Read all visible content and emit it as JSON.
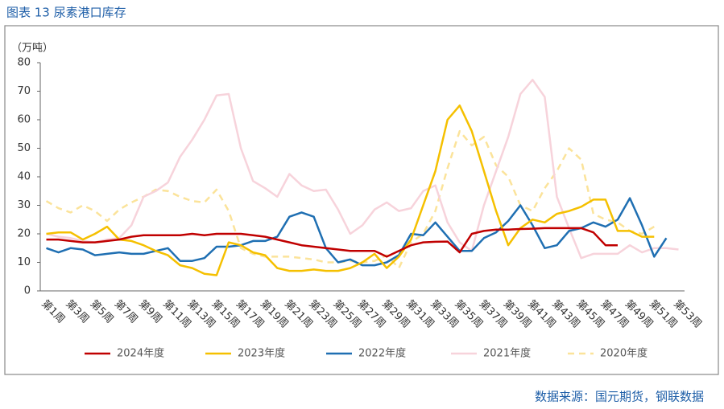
{
  "chart_data": {
    "type": "line",
    "title": "图表 13 尿素港口库存",
    "y_label": "（万吨）",
    "source": "数据来源：国元期货，钢联数据",
    "categories": [
      "第1周",
      null,
      "第3周",
      null,
      "第5周",
      null,
      "第7周",
      null,
      "第9周",
      null,
      "第11周",
      null,
      "第13周",
      null,
      "第15周",
      null,
      "第17周",
      null,
      "第19周",
      null,
      "第21周",
      null,
      "第23周",
      null,
      "第25周",
      null,
      "第27周",
      null,
      "第29周",
      null,
      "第31周",
      null,
      "第33周",
      null,
      "第35周",
      null,
      "第37周",
      null,
      "第39周",
      null,
      "第41周",
      null,
      "第43周",
      null,
      "第45周",
      null,
      "第47周",
      null,
      "第49周",
      null,
      "第51周",
      null,
      "第53周"
    ],
    "ylim": [
      0,
      80
    ],
    "yticks": [
      0,
      10,
      20,
      30,
      40,
      50,
      60,
      70,
      80
    ],
    "grid": false,
    "legend": "bottom",
    "series": [
      {
        "name": "2024年度",
        "color": "#c00000",
        "dashed": false,
        "values": [
          18,
          18,
          17.5,
          17,
          17,
          17.5,
          18,
          19,
          19.5,
          19.5,
          19.5,
          19.5,
          20,
          19.5,
          20,
          20,
          20,
          19.5,
          19,
          18,
          17,
          16,
          15.5,
          15,
          14.5,
          14,
          14,
          14,
          12,
          14,
          16,
          17,
          17.2,
          17.3,
          13.5,
          20,
          21,
          21.5,
          21.5,
          21.7,
          21.8,
          22,
          22,
          22,
          22,
          20.5,
          16,
          16,
          null,
          null,
          null,
          null,
          null
        ]
      },
      {
        "name": "2023年度",
        "color": "#f5c000",
        "dashed": false,
        "values": [
          20,
          20.5,
          20.5,
          18,
          20,
          22.5,
          18,
          17.5,
          16,
          14,
          12.5,
          9,
          8,
          6,
          5.5,
          17,
          16,
          13.5,
          12.5,
          8,
          7,
          7,
          7.5,
          7,
          7,
          8,
          10,
          13,
          8,
          12,
          18,
          30,
          42,
          60,
          65,
          56,
          42,
          28,
          16,
          22,
          25,
          24,
          27,
          28,
          29.5,
          32,
          32,
          21,
          21,
          19,
          19,
          null,
          null
        ]
      },
      {
        "name": "2022年度",
        "color": "#1f6fb2",
        "dashed": false,
        "values": [
          15,
          13.5,
          15,
          14.5,
          12.5,
          13,
          13.5,
          13,
          13,
          14,
          15,
          10.5,
          10.5,
          11.5,
          15.5,
          15.5,
          16,
          17.5,
          17.5,
          19,
          26,
          27.5,
          26,
          15,
          10,
          11,
          9,
          9,
          10,
          12.5,
          20,
          19.5,
          24,
          19,
          14,
          14,
          18.5,
          20.5,
          24.5,
          30,
          23,
          15,
          16,
          21,
          22,
          24,
          22.5,
          25,
          32.5,
          23,
          12,
          18.5,
          null
        ]
      },
      {
        "name": "2021年度",
        "color": "#f7d3db",
        "dashed": false,
        "values": [
          20,
          19,
          18.5,
          17.5,
          17,
          18,
          18.5,
          23,
          33,
          35,
          38,
          47,
          53,
          60,
          68.5,
          69,
          50,
          38.5,
          36,
          33,
          41,
          37,
          35,
          35.5,
          28.5,
          20,
          23,
          28.5,
          31,
          28,
          29,
          35,
          37,
          24,
          17,
          14,
          30,
          42,
          54,
          69,
          74,
          68,
          33,
          22,
          11.5,
          13,
          13,
          13,
          16,
          13.5,
          15,
          15,
          14.5
        ]
      },
      {
        "name": "2020年度",
        "color": "#fbe39a",
        "dashed": true,
        "values": [
          31.5,
          29,
          27.5,
          30,
          28,
          24.5,
          28.5,
          31,
          33,
          35.5,
          35,
          33,
          31.5,
          31,
          35.5,
          28,
          15,
          13,
          12,
          12,
          12,
          11.5,
          11,
          10,
          10,
          10.5,
          10,
          10.5,
          12.5,
          8,
          17,
          20,
          28,
          43,
          56,
          51,
          54,
          44,
          40,
          30,
          28,
          36,
          42,
          50,
          46,
          27,
          25,
          24,
          21,
          20,
          22.5,
          null,
          null
        ]
      }
    ]
  }
}
